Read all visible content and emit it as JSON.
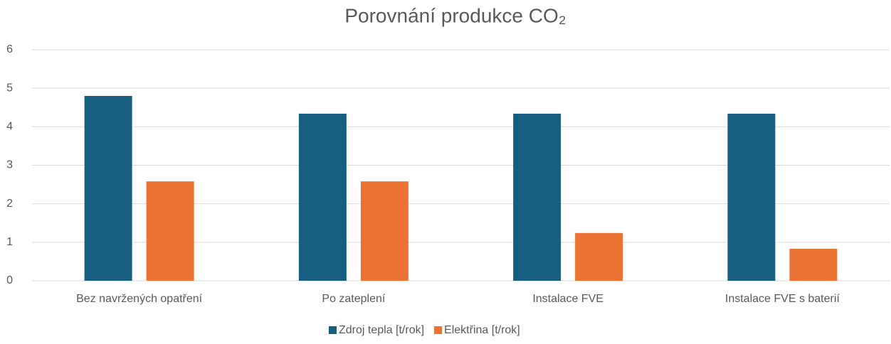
{
  "chart_data": {
    "type": "bar",
    "title": "Porovnání produkce CO₂",
    "categories": [
      "Bez navržených opatření",
      "Po zateplení",
      "Instalace FVE",
      "Instalace FVE s baterií"
    ],
    "series": [
      {
        "name": "Zdroj tepla [t/rok]",
        "color": "#175f80",
        "values": [
          4.8,
          4.34,
          4.34,
          4.34
        ]
      },
      {
        "name": "Elektřina [t/rok]",
        "color": "#ea7232",
        "values": [
          2.58,
          2.58,
          1.24,
          0.83
        ]
      }
    ],
    "ylim": [
      0,
      6
    ],
    "yticks": [
      0,
      1,
      2,
      3,
      4,
      5,
      6
    ],
    "grid": true,
    "legend": "bottom"
  }
}
